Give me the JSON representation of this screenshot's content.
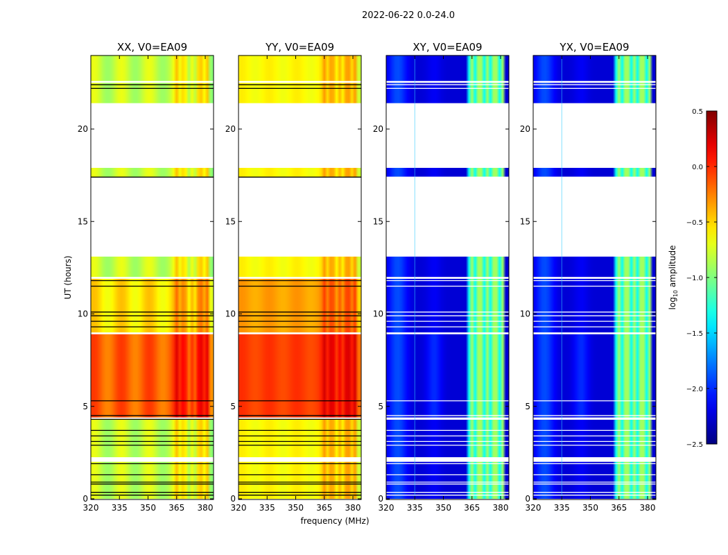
{
  "chart_data": {
    "type": "heatmap",
    "suptitle": "2022-06-22 0.0-24.0",
    "xlabel": "frequency (MHz)",
    "ylabel": "UT (hours)",
    "xlim": [
      320,
      384
    ],
    "ylim": [
      0,
      24
    ],
    "xticks": [
      "320",
      "335",
      "350",
      "365",
      "380"
    ],
    "xtick_values": [
      320,
      335,
      350,
      365,
      380
    ],
    "yticks": [
      "0",
      "5",
      "10",
      "15",
      "20"
    ],
    "ytick_values": [
      0,
      5,
      10,
      15,
      20
    ],
    "data_segments_hours": [
      [
        0,
        2.0
      ],
      [
        2.25,
        4.3
      ],
      [
        4.4,
        8.9
      ],
      [
        9.0,
        11.9
      ],
      [
        12.0,
        13.1
      ],
      [
        17.4,
        17.9
      ],
      [
        21.4,
        22.5
      ],
      [
        22.6,
        24
      ]
    ],
    "flagged_rows_hours": [
      0.2,
      0.35,
      0.8,
      0.9,
      1.3,
      1.9,
      2.9,
      3.1,
      3.4,
      3.7,
      4.3,
      4.5,
      5.3,
      9.3,
      9.6,
      9.9,
      10.1,
      11.5,
      11.8,
      17.4,
      22.2,
      22.4
    ],
    "panels": [
      {
        "title": "XX, V0=EA09",
        "kind": "auto",
        "pol": "XX"
      },
      {
        "title": "YY, V0=EA09",
        "kind": "auto",
        "pol": "YY"
      },
      {
        "title": "XY, V0=EA09",
        "kind": "cross",
        "pol": "XY"
      },
      {
        "title": "YX, V0=EA09",
        "kind": "cross",
        "pol": "YX"
      }
    ],
    "colorbar": {
      "label": "log10 amplitude",
      "ticks": [
        "0.5",
        "0.0",
        "−0.5",
        "−1.0",
        "−1.5",
        "−2.0",
        "−2.5"
      ],
      "tick_values": [
        0.5,
        0.0,
        -0.5,
        -1.0,
        -1.5,
        -2.0,
        -2.5
      ],
      "range": [
        -2.5,
        0.5
      ],
      "colormap": "jet"
    }
  }
}
